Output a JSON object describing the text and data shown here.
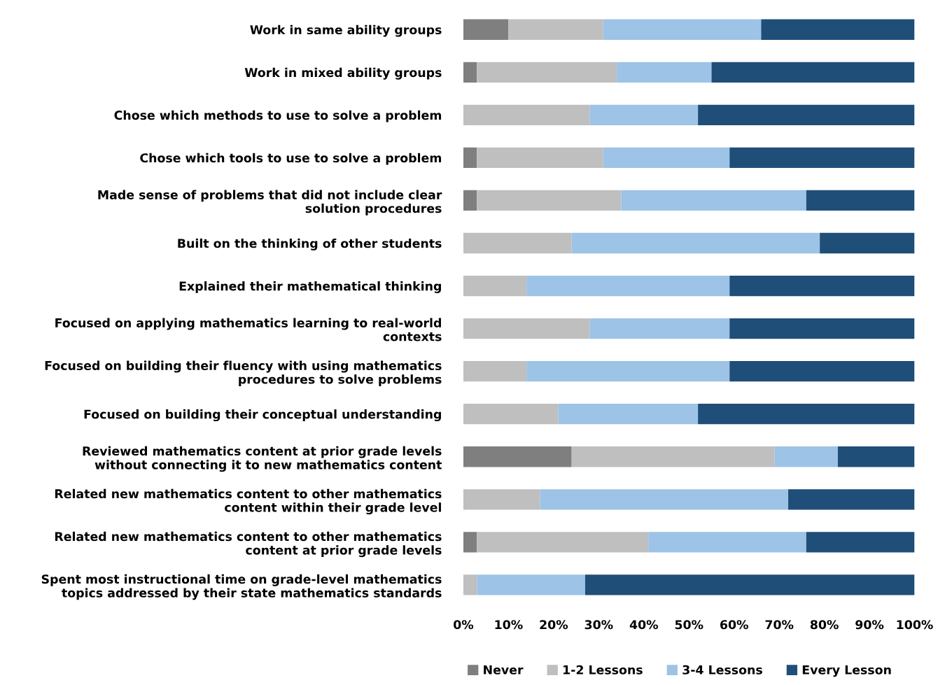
{
  "chart_data": {
    "type": "bar",
    "orientation": "horizontal",
    "stacked": true,
    "categories": [
      "Work in same ability groups",
      "Work in mixed ability groups",
      "Chose which methods to use to solve a problem",
      "Chose which tools to use to solve a problem",
      "Made sense of problems that did not include clear\nsolution procedures",
      "Built on the thinking of other students",
      "Explained their mathematical thinking",
      "Focused on applying mathematics learning to real-world\ncontexts",
      "Focused on building their fluency with using mathematics\nprocedures to solve problems",
      "Focused on building their conceptual understanding",
      "Reviewed mathematics content at prior grade levels\nwithout connecting it to new mathematics content",
      "Related new mathematics content to other mathematics\ncontent within their grade level",
      "Related new mathematics content to other mathematics\ncontent at prior grade levels",
      "Spent most instructional time on grade-level mathematics\ntopics addressed by their state mathematics standards"
    ],
    "series": [
      {
        "name": "Never",
        "color": "#7f7f7f",
        "values": [
          10,
          3,
          0,
          3,
          3,
          0,
          0,
          0,
          0,
          0,
          24,
          0,
          3,
          0
        ]
      },
      {
        "name": "1-2 Lessons",
        "color": "#bfbfbf",
        "values": [
          21,
          31,
          28,
          28,
          32,
          24,
          14,
          28,
          14,
          21,
          45,
          17,
          38,
          3
        ]
      },
      {
        "name": "3-4 Lessons",
        "color": "#9dc3e6",
        "values": [
          35,
          21,
          24,
          28,
          41,
          55,
          45,
          31,
          45,
          31,
          14,
          55,
          35,
          24
        ]
      },
      {
        "name": "Every Lesson",
        "color": "#1f4e79",
        "values": [
          34,
          45,
          48,
          41,
          24,
          21,
          41,
          41,
          41,
          48,
          17,
          28,
          24,
          73
        ]
      }
    ],
    "xlim": [
      0,
      100
    ],
    "xticks": [
      {
        "value": 0,
        "label": "0%"
      },
      {
        "value": 10,
        "label": "10%"
      },
      {
        "value": 20,
        "label": "20%"
      },
      {
        "value": 30,
        "label": "30%"
      },
      {
        "value": 40,
        "label": "40%"
      },
      {
        "value": 50,
        "label": "50%"
      },
      {
        "value": 60,
        "label": "60%"
      },
      {
        "value": 70,
        "label": "70%"
      },
      {
        "value": 80,
        "label": "80%"
      },
      {
        "value": 90,
        "label": "90%"
      },
      {
        "value": 100,
        "label": "100%"
      }
    ],
    "grid": false,
    "legend": "bottom"
  }
}
